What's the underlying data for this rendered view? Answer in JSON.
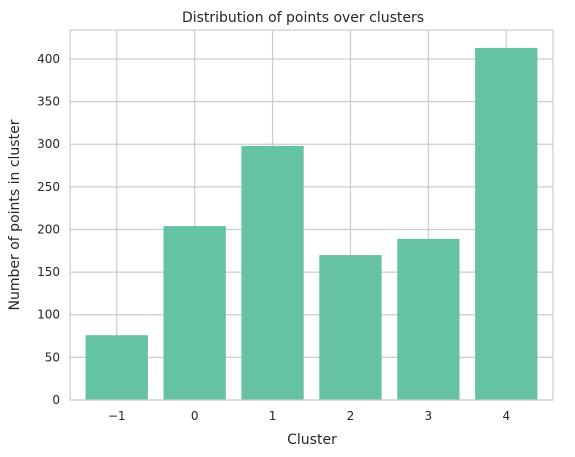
{
  "chart_data": {
    "type": "bar",
    "title": "Distribution of points over clusters",
    "xlabel": "Cluster",
    "ylabel": "Number of points in cluster",
    "categories": [
      "−1",
      "0",
      "1",
      "2",
      "3",
      "4"
    ],
    "values": [
      76,
      204,
      298,
      170,
      189,
      413
    ],
    "yticks": [
      0,
      50,
      100,
      150,
      200,
      250,
      300,
      350,
      400
    ],
    "ylim": [
      0,
      434
    ],
    "grid": true,
    "bar_color": "#66c2a5",
    "grid_color": "#cccccc",
    "text_color": "#262626"
  }
}
